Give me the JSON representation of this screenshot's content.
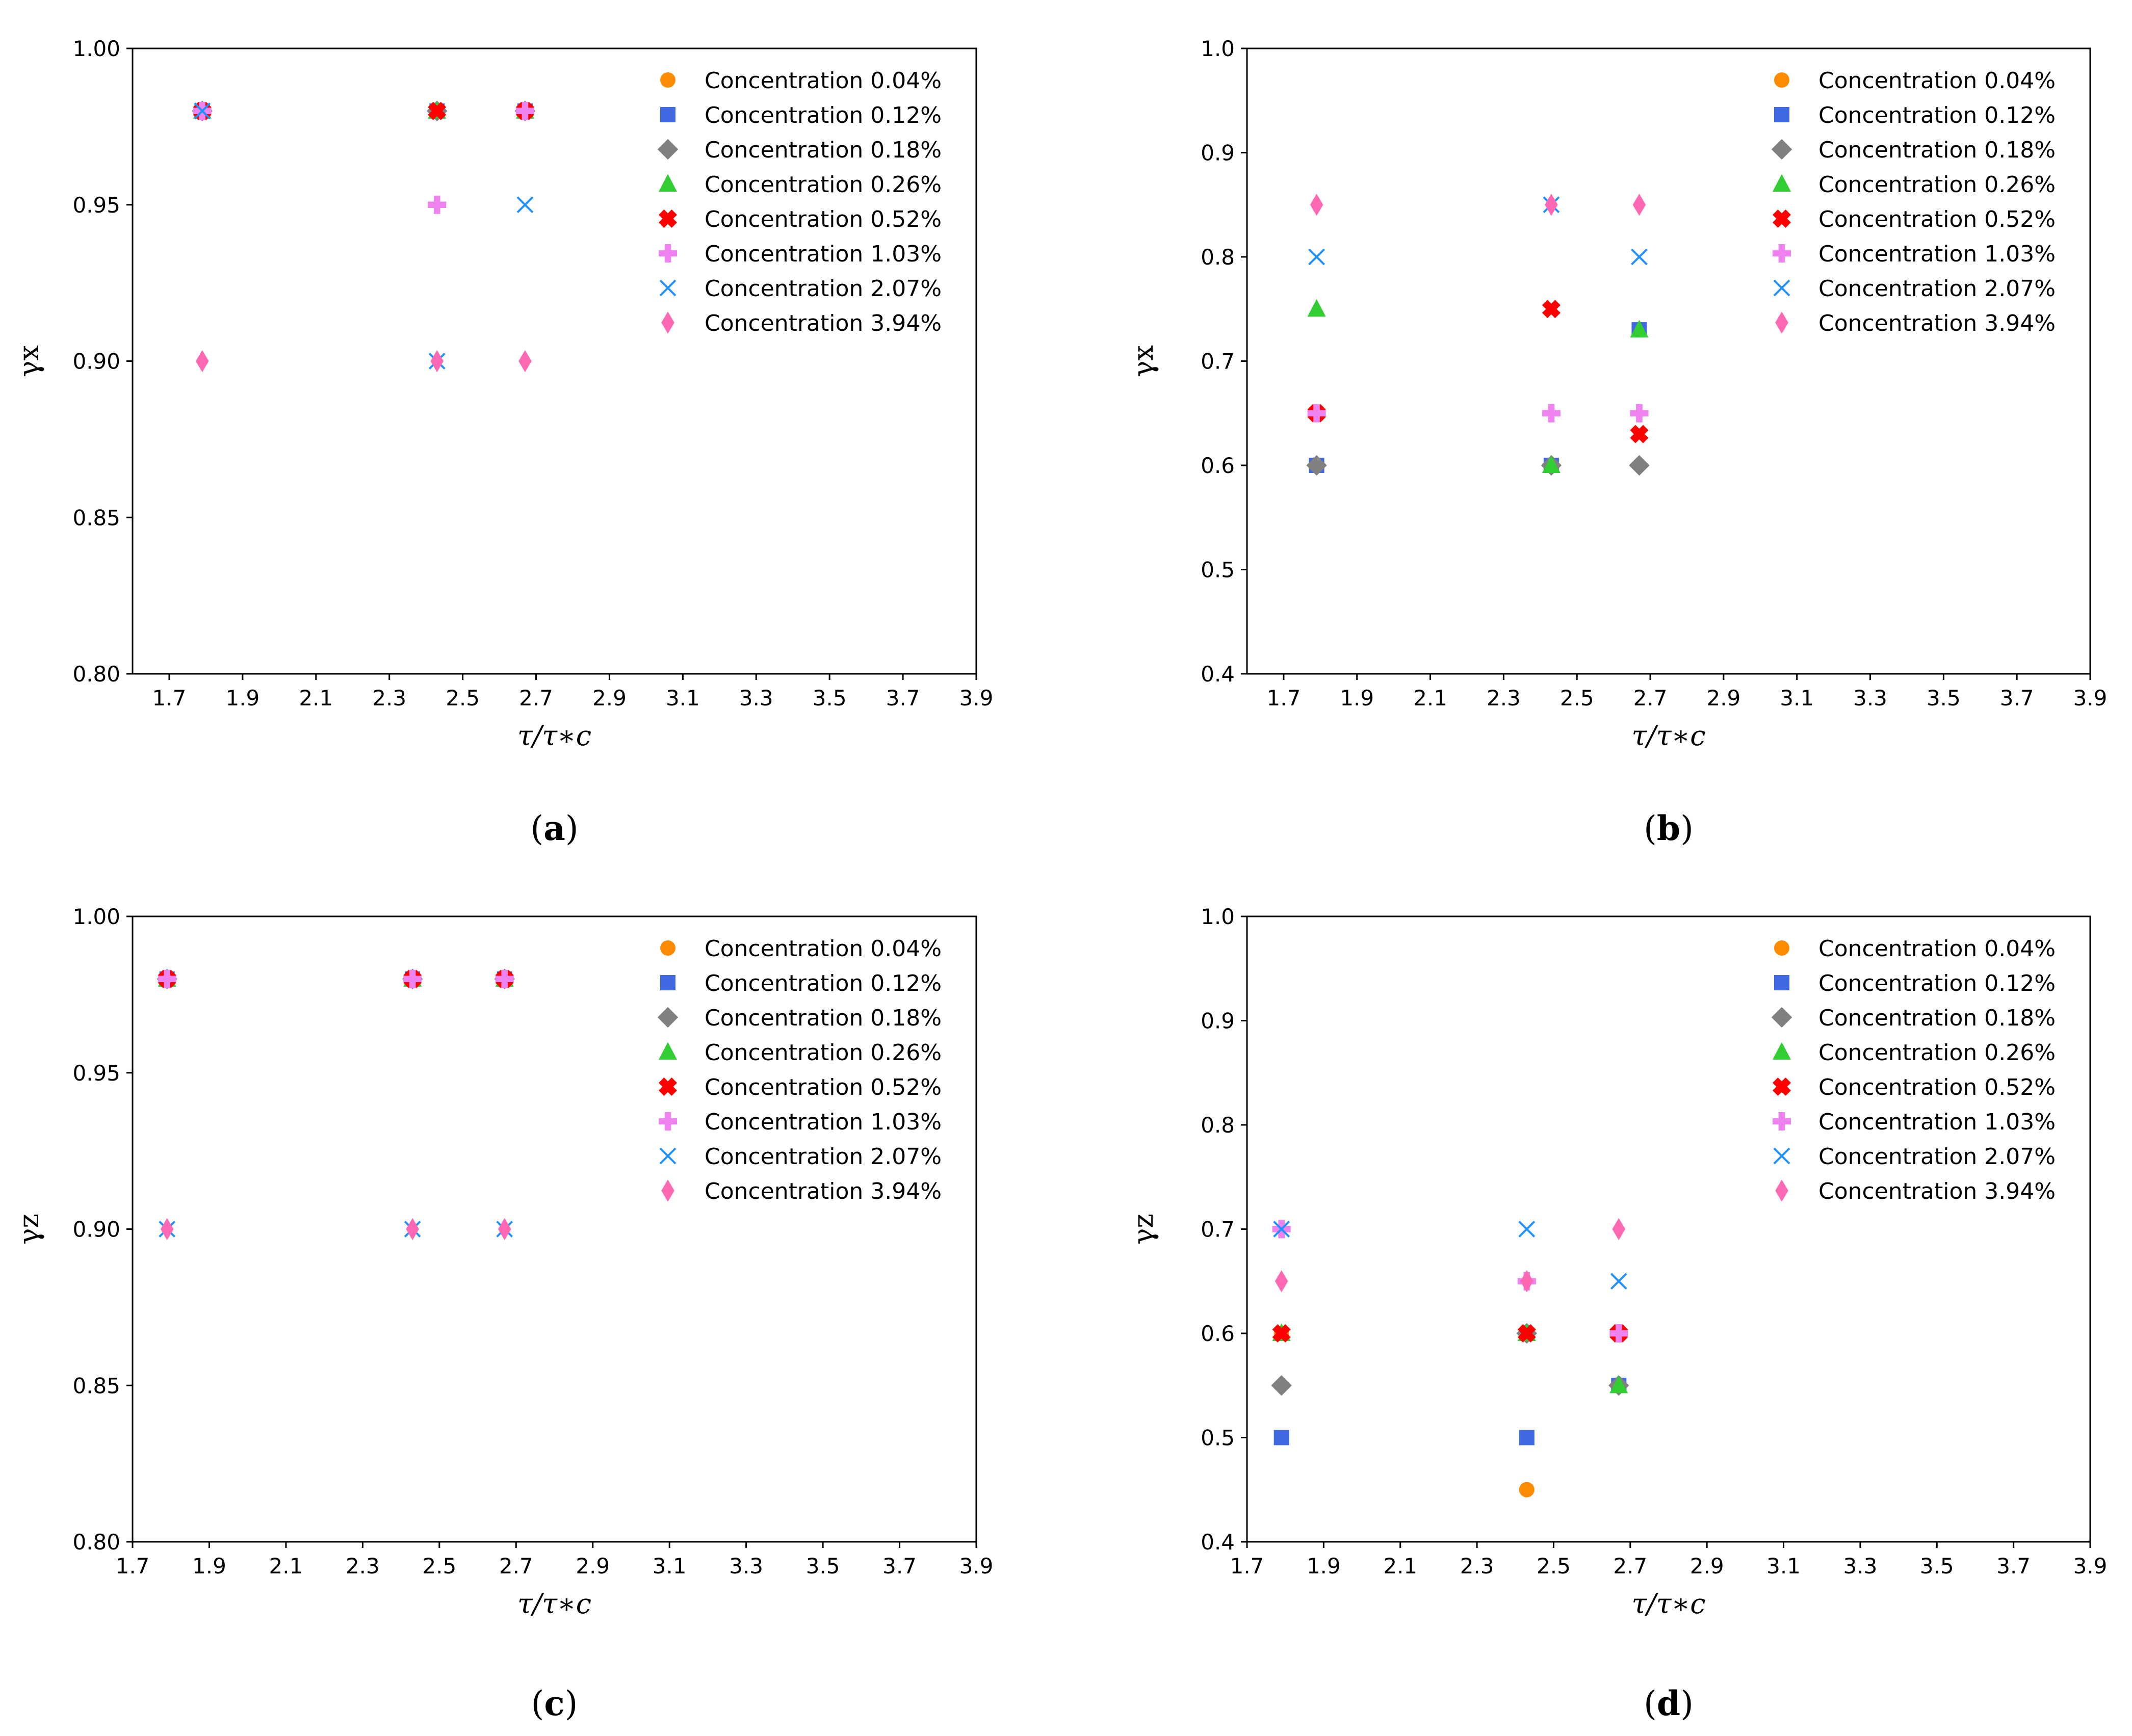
{
  "panel_caption_parens": [
    "(",
    ")"
  ],
  "legend_marker_colors": {
    "c004": "#ff8c00",
    "c012": "#4169e1",
    "c018": "#808080",
    "c026": "#32cd32",
    "c052": "#ff0000",
    "c103": "#ee82ee",
    "c207": "#1e90ff",
    "c394": "#ff69b4"
  },
  "legend_marker_shapes": {
    "c004": "circle-icon",
    "c012": "square-icon",
    "c018": "diamond-icon",
    "c026": "triangle-icon",
    "c052": "x-filled-icon",
    "c103": "plus-filled-icon",
    "c207": "x-icon",
    "c394": "thin-diamond-icon"
  },
  "chart_data": [
    {
      "type": "scatter",
      "id": "a",
      "label": "a",
      "xlabel": "τ/τ∗c",
      "ylabel": "γx",
      "xlim": [
        1.6,
        3.9
      ],
      "ylim": [
        0.8,
        1.0
      ],
      "xticks": [
        "1.7",
        "1.9",
        "2.1",
        "2.3",
        "2.5",
        "2.7",
        "2.9",
        "3.1",
        "3.3",
        "3.5",
        "3.7",
        "3.9"
      ],
      "yticks": [
        "0.80",
        "0.85",
        "0.90",
        "0.95",
        "1.00"
      ],
      "legend_position": "top-right",
      "grid": false,
      "series": [
        {
          "key": "c004",
          "name": "Concentration 0.04%",
          "x": [
            1.79,
            2.43,
            2.67
          ],
          "y": [
            0.98,
            0.98,
            0.98
          ]
        },
        {
          "key": "c012",
          "name": "Concentration 0.12%",
          "x": [
            1.79,
            2.43,
            2.67
          ],
          "y": [
            0.98,
            0.98,
            0.98
          ]
        },
        {
          "key": "c018",
          "name": "Concentration 0.18%",
          "x": [
            1.79,
            2.43,
            2.67
          ],
          "y": [
            0.98,
            0.98,
            0.98
          ]
        },
        {
          "key": "c026",
          "name": "Concentration 0.26%",
          "x": [
            1.79,
            2.43,
            2.67
          ],
          "y": [
            0.98,
            0.98,
            0.98
          ]
        },
        {
          "key": "c052",
          "name": "Concentration 0.52%",
          "x": [
            1.79,
            2.43,
            2.67
          ],
          "y": [
            0.98,
            0.98,
            0.98
          ]
        },
        {
          "key": "c103",
          "name": "Concentration 1.03%",
          "x": [
            1.79,
            2.43,
            2.67
          ],
          "y": [
            0.98,
            0.95,
            0.98
          ]
        },
        {
          "key": "c207",
          "name": "Concentration 2.07%",
          "x": [
            1.79,
            2.43,
            2.67
          ],
          "y": [
            0.98,
            0.9,
            0.95
          ]
        },
        {
          "key": "c394",
          "name": "Concentration 3.94%",
          "x": [
            1.79,
            2.43,
            2.67
          ],
          "y": [
            0.9,
            0.9,
            0.9
          ]
        }
      ]
    },
    {
      "type": "scatter",
      "id": "b",
      "label": "b",
      "xlabel": "τ/τ∗c",
      "ylabel": "γx",
      "xlim": [
        1.6,
        3.9
      ],
      "ylim": [
        0.4,
        1.0
      ],
      "xticks": [
        "1.7",
        "1.9",
        "2.1",
        "2.3",
        "2.5",
        "2.7",
        "2.9",
        "3.1",
        "3.3",
        "3.5",
        "3.7",
        "3.9"
      ],
      "yticks": [
        "0.4",
        "0.5",
        "0.6",
        "0.7",
        "0.8",
        "0.9",
        "1.0"
      ],
      "legend_position": "top-right",
      "grid": false,
      "series": [
        {
          "key": "c004",
          "name": "Concentration 0.04%",
          "x": [
            1.79,
            2.43,
            2.67
          ],
          "y": [
            0.6,
            0.6,
            0.73
          ]
        },
        {
          "key": "c012",
          "name": "Concentration 0.12%",
          "x": [
            1.79,
            2.43,
            2.67
          ],
          "y": [
            0.6,
            0.6,
            0.73
          ]
        },
        {
          "key": "c018",
          "name": "Concentration 0.18%",
          "x": [
            1.79,
            2.43,
            2.67
          ],
          "y": [
            0.6,
            0.6,
            0.6
          ]
        },
        {
          "key": "c026",
          "name": "Concentration 0.26%",
          "x": [
            1.79,
            2.43,
            2.67
          ],
          "y": [
            0.75,
            0.6,
            0.73
          ]
        },
        {
          "key": "c052",
          "name": "Concentration 0.52%",
          "x": [
            1.79,
            2.43,
            2.67
          ],
          "y": [
            0.65,
            0.75,
            0.63
          ]
        },
        {
          "key": "c103",
          "name": "Concentration 1.03%",
          "x": [
            1.79,
            2.43,
            2.67
          ],
          "y": [
            0.65,
            0.65,
            0.65
          ]
        },
        {
          "key": "c207",
          "name": "Concentration 2.07%",
          "x": [
            1.79,
            2.43,
            2.67
          ],
          "y": [
            0.8,
            0.85,
            0.8
          ]
        },
        {
          "key": "c394",
          "name": "Concentration 3.94%",
          "x": [
            1.79,
            2.43,
            2.67
          ],
          "y": [
            0.85,
            0.85,
            0.85
          ]
        }
      ]
    },
    {
      "type": "scatter",
      "id": "c",
      "label": "c",
      "xlabel": "τ/τ∗c",
      "ylabel": "γz",
      "xlim": [
        1.7,
        3.9
      ],
      "ylim": [
        0.8,
        1.0
      ],
      "xticks": [
        "1.7",
        "1.9",
        "2.1",
        "2.3",
        "2.5",
        "2.7",
        "2.9",
        "3.1",
        "3.3",
        "3.5",
        "3.7",
        "3.9"
      ],
      "yticks": [
        "0.80",
        "0.85",
        "0.90",
        "0.95",
        "1.00"
      ],
      "legend_position": "top-right",
      "grid": false,
      "series": [
        {
          "key": "c004",
          "name": "Concentration 0.04%",
          "x": [
            1.79,
            2.43,
            2.67
          ],
          "y": [
            0.98,
            0.98,
            0.98
          ]
        },
        {
          "key": "c012",
          "name": "Concentration 0.12%",
          "x": [
            1.79,
            2.43,
            2.67
          ],
          "y": [
            0.98,
            0.98,
            0.98
          ]
        },
        {
          "key": "c018",
          "name": "Concentration 0.18%",
          "x": [
            1.79,
            2.43,
            2.67
          ],
          "y": [
            0.98,
            0.98,
            0.98
          ]
        },
        {
          "key": "c026",
          "name": "Concentration 0.26%",
          "x": [
            1.79,
            2.43,
            2.67
          ],
          "y": [
            0.98,
            0.98,
            0.98
          ]
        },
        {
          "key": "c052",
          "name": "Concentration 0.52%",
          "x": [
            1.79,
            2.43,
            2.67
          ],
          "y": [
            0.98,
            0.98,
            0.98
          ]
        },
        {
          "key": "c103",
          "name": "Concentration 1.03%",
          "x": [
            1.79,
            2.43,
            2.67
          ],
          "y": [
            0.98,
            0.98,
            0.98
          ]
        },
        {
          "key": "c207",
          "name": "Concentration 2.07%",
          "x": [
            1.79,
            2.43,
            2.67
          ],
          "y": [
            0.9,
            0.9,
            0.9
          ]
        },
        {
          "key": "c394",
          "name": "Concentration 3.94%",
          "x": [
            1.79,
            2.43,
            2.67
          ],
          "y": [
            0.9,
            0.9,
            0.9
          ]
        }
      ]
    },
    {
      "type": "scatter",
      "id": "d",
      "label": "d",
      "xlabel": "τ/τ∗c",
      "ylabel": "γz",
      "xlim": [
        1.7,
        3.9
      ],
      "ylim": [
        0.4,
        1.0
      ],
      "xticks": [
        "1.7",
        "1.9",
        "2.1",
        "2.3",
        "2.5",
        "2.7",
        "2.9",
        "3.1",
        "3.3",
        "3.5",
        "3.7",
        "3.9"
      ],
      "yticks": [
        "0.4",
        "0.5",
        "0.6",
        "0.7",
        "0.8",
        "0.9",
        "1.0"
      ],
      "legend_position": "top-right",
      "grid": false,
      "series": [
        {
          "key": "c004",
          "name": "Concentration 0.04%",
          "x": [
            1.79,
            2.43,
            2.67
          ],
          "y": [
            0.6,
            0.45,
            0.55
          ]
        },
        {
          "key": "c012",
          "name": "Concentration 0.12%",
          "x": [
            1.79,
            2.43,
            2.67
          ],
          "y": [
            0.5,
            0.5,
            0.55
          ]
        },
        {
          "key": "c018",
          "name": "Concentration 0.18%",
          "x": [
            1.79,
            2.43,
            2.67
          ],
          "y": [
            0.55,
            0.6,
            0.55
          ]
        },
        {
          "key": "c026",
          "name": "Concentration 0.26%",
          "x": [
            1.79,
            2.43,
            2.67
          ],
          "y": [
            0.6,
            0.6,
            0.55
          ]
        },
        {
          "key": "c052",
          "name": "Concentration 0.52%",
          "x": [
            1.79,
            2.43,
            2.67
          ],
          "y": [
            0.6,
            0.6,
            0.6
          ]
        },
        {
          "key": "c103",
          "name": "Concentration 1.03%",
          "x": [
            1.79,
            2.43,
            2.67
          ],
          "y": [
            0.7,
            0.65,
            0.6
          ]
        },
        {
          "key": "c207",
          "name": "Concentration 2.07%",
          "x": [
            1.79,
            2.43,
            2.67
          ],
          "y": [
            0.7,
            0.7,
            0.65
          ]
        },
        {
          "key": "c394",
          "name": "Concentration 3.94%",
          "x": [
            1.79,
            2.43,
            2.67
          ],
          "y": [
            0.65,
            0.65,
            0.7
          ]
        }
      ]
    }
  ]
}
